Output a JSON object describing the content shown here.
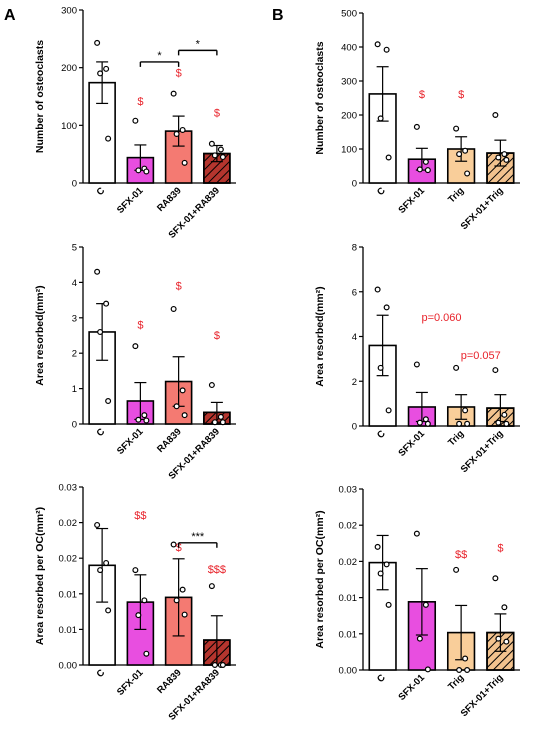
{
  "panel_labels": [
    "A",
    "B"
  ],
  "chart_data": [
    {
      "type": "bar",
      "panel": "A",
      "ylabel": "Number of osteoclasts",
      "ylim": [
        0,
        300
      ],
      "yticks": [
        "0",
        "100",
        "200",
        "300"
      ],
      "categories": [
        "C",
        "SFX-01",
        "RA839",
        "SFX-01+RA839"
      ],
      "colors": [
        "#ffffff",
        "#e84ee0",
        "#f47a72",
        "#b5352e"
      ],
      "hatched": [
        false,
        false,
        false,
        true
      ],
      "values": [
        174,
        44,
        90,
        51
      ],
      "sem": [
        36,
        22,
        26,
        14
      ],
      "points": [
        [
          243,
          198,
          190,
          77
        ],
        [
          108,
          25,
          22,
          20
        ],
        [
          155,
          92,
          85,
          35
        ],
        [
          68,
          58,
          48,
          45
        ]
      ],
      "annotations": [
        {
          "text": "$",
          "index": 1,
          "y": 135
        },
        {
          "text": "$",
          "index": 2,
          "y": 185
        },
        {
          "text": "$",
          "index": 3,
          "y": 115
        }
      ],
      "significance": [
        {
          "text": "*",
          "from": 1,
          "to": 2,
          "y": 210
        },
        {
          "text": "*",
          "from": 2,
          "to": 3,
          "y": 230
        }
      ]
    },
    {
      "type": "bar",
      "panel": "A",
      "ylabel": "Area resorbed(mm²)",
      "ylim": [
        0,
        5
      ],
      "yticks": [
        "0",
        "1",
        "2",
        "3",
        "4",
        "5"
      ],
      "categories": [
        "C",
        "SFX-01",
        "RA839",
        "SFX-01+RA839"
      ],
      "colors": [
        "#ffffff",
        "#e84ee0",
        "#f47a72",
        "#b5352e"
      ],
      "hatched": [
        false,
        false,
        false,
        true
      ],
      "values": [
        2.6,
        0.65,
        1.2,
        0.33
      ],
      "sem": [
        0.8,
        0.52,
        0.7,
        0.28
      ],
      "points": [
        [
          4.3,
          3.4,
          2.6,
          0.65
        ],
        [
          2.2,
          0.25,
          0.12,
          0.1
        ],
        [
          3.25,
          0.95,
          0.5,
          0.25
        ],
        [
          1.1,
          0.2,
          0.05,
          0.05
        ]
      ],
      "annotations": [
        {
          "text": "$",
          "index": 1,
          "y": 2.7
        },
        {
          "text": "$",
          "index": 2,
          "y": 3.8
        },
        {
          "text": "$",
          "index": 3,
          "y": 2.4
        }
      ],
      "significance": []
    },
    {
      "type": "bar",
      "panel": "A",
      "ylabel": "Area resorbed per OC(mm²)",
      "ylim": [
        0,
        0.03
      ],
      "yticks": [
        "0.00",
        "0.01",
        "0.01",
        "0.02",
        "0.02",
        "0.03"
      ],
      "categories": [
        "C",
        "SFX-01",
        "RA839",
        "SFX-01+RA839"
      ],
      "colors": [
        "#ffffff",
        "#e84ee0",
        "#f47a72",
        "#b5352e"
      ],
      "hatched": [
        false,
        false,
        false,
        true
      ],
      "values": [
        0.0168,
        0.0106,
        0.0114,
        0.0042
      ],
      "sem": [
        0.0062,
        0.0046,
        0.0065,
        0.0041
      ],
      "points": [
        [
          0.0236,
          0.0172,
          0.016,
          0.0092
        ],
        [
          0.016,
          0.0109,
          0.0084,
          0.0019
        ],
        [
          0.0203,
          0.0127,
          0.0109,
          0.0085
        ],
        [
          0.0133,
          0.0,
          0.0,
          0.0
        ]
      ],
      "annotations": [
        {
          "text": "$$",
          "index": 1,
          "y": 0.0246
        },
        {
          "text": "$",
          "index": 2,
          "y": 0.0192
        },
        {
          "text": "$$$",
          "index": 3,
          "y": 0.0155
        }
      ],
      "significance": [
        {
          "text": "***",
          "from": 2,
          "to": 3,
          "y": 0.0206
        }
      ]
    },
    {
      "type": "bar",
      "panel": "B",
      "ylabel": "Number of osteoclasts",
      "ylim": [
        0,
        500
      ],
      "yticks": [
        "0",
        "100",
        "200",
        "300",
        "400",
        "500"
      ],
      "categories": [
        "C",
        "SFX-01",
        "Trig",
        "SFX-01+Trig"
      ],
      "colors": [
        "#ffffff",
        "#e84ee0",
        "#f9ce9a",
        "#f2c28e"
      ],
      "hatched": [
        false,
        false,
        false,
        true
      ],
      "values": [
        262,
        70,
        100,
        88
      ],
      "sem": [
        80,
        32,
        36,
        38
      ],
      "points": [
        [
          408,
          392,
          190,
          75
        ],
        [
          165,
          62,
          40,
          38
        ],
        [
          160,
          95,
          85,
          28
        ],
        [
          200,
          85,
          75,
          68
        ]
      ],
      "annotations": [
        {
          "text": "$",
          "index": 1,
          "y": 250
        },
        {
          "text": "$",
          "index": 2,
          "y": 250
        }
      ],
      "significance": []
    },
    {
      "type": "bar",
      "panel": "B",
      "ylabel": "Area resorbed(mm²)",
      "ylim": [
        0,
        8
      ],
      "yticks": [
        "0",
        "2",
        "4",
        "6",
        "8"
      ],
      "categories": [
        "C",
        "SFX-01",
        "Trig",
        "SFX-01+Trig"
      ],
      "colors": [
        "#ffffff",
        "#e84ee0",
        "#f9ce9a",
        "#f2c28e"
      ],
      "hatched": [
        false,
        false,
        false,
        true
      ],
      "values": [
        3.6,
        0.85,
        0.85,
        0.8
      ],
      "sem": [
        1.35,
        0.65,
        0.55,
        0.6
      ],
      "points": [
        [
          6.1,
          5.3,
          2.6,
          0.7
        ],
        [
          2.75,
          0.3,
          0.15,
          0.1
        ],
        [
          2.6,
          0.7,
          0.1,
          0.1
        ],
        [
          2.5,
          0.5,
          0.15,
          0.1
        ]
      ],
      "annotations": [
        {
          "text": "p=0.060",
          "index": 1.5,
          "y": 4.7
        },
        {
          "text": "p=0.057",
          "index": 2.5,
          "y": 3.0
        }
      ],
      "significance": []
    },
    {
      "type": "bar",
      "panel": "B",
      "ylabel": "Area resorbed per OC(mm²)",
      "ylim": [
        0,
        0.03
      ],
      "yticks": [
        "0.00",
        "0.01",
        "0.01",
        "0.02",
        "0.02",
        "0.03"
      ],
      "categories": [
        "C",
        "SFX-01",
        "Trig",
        "SFX-01+Trig"
      ],
      "colors": [
        "#ffffff",
        "#e84ee0",
        "#f9ce9a",
        "#f2c28e"
      ],
      "hatched": [
        false,
        false,
        false,
        true
      ],
      "values": [
        0.0178,
        0.0113,
        0.0062,
        0.0062
      ],
      "sem": [
        0.0045,
        0.0055,
        0.0045,
        0.0031
      ],
      "points": [
        [
          0.0204,
          0.0175,
          0.016,
          0.0108
        ],
        [
          0.0226,
          0.0108,
          0.0052,
          0.0001
        ],
        [
          0.0166,
          0.0019,
          0.0,
          0.0
        ],
        [
          0.0152,
          0.0104,
          0.0052,
          0.0047
        ]
      ],
      "annotations": [
        {
          "text": "$$",
          "index": 2,
          "y": 0.0186
        },
        {
          "text": "$",
          "index": 3,
          "y": 0.0196
        }
      ],
      "significance": []
    }
  ]
}
